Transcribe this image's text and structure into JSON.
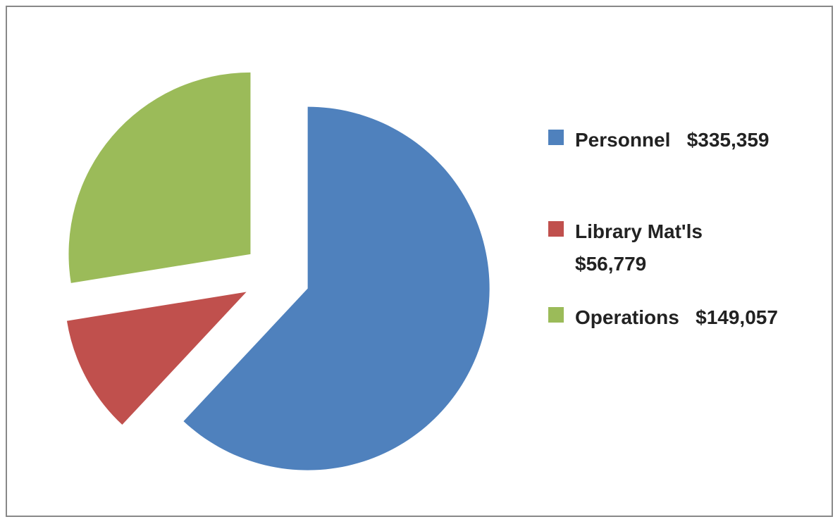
{
  "chart_data": {
    "type": "pie",
    "categories": [
      "Personnel   $335,359",
      "Library Mat'ls $56,779",
      "Operations   $149,057"
    ],
    "values": [
      335359,
      56779,
      149057
    ],
    "colors": [
      "#4f81bd",
      "#c0504d",
      "#9bbb59"
    ],
    "legend": "right"
  }
}
